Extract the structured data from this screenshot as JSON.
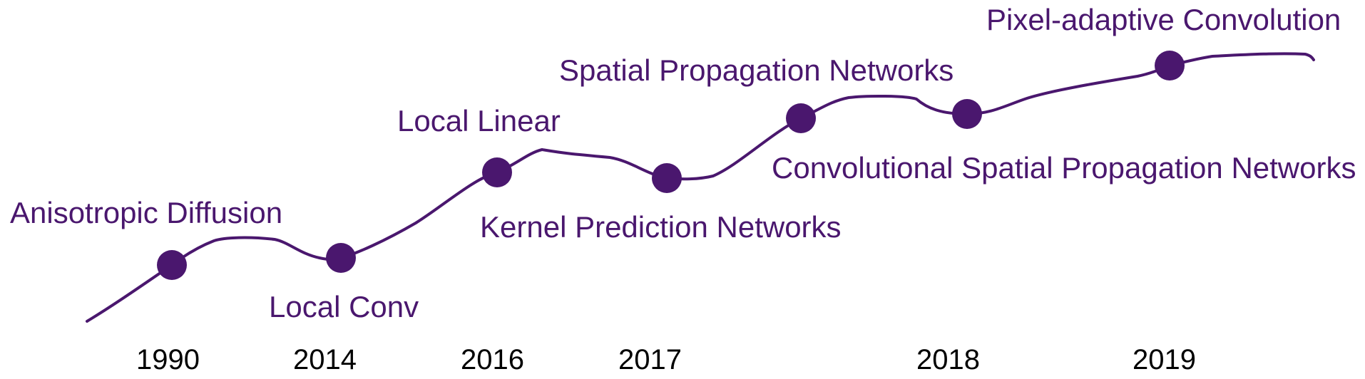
{
  "colors": {
    "curve": "#4a176e",
    "dot": "#4a176e",
    "milestone_text": "#4a176e",
    "year_text": "#000000",
    "background": "#ffffff"
  },
  "milestones": [
    {
      "label": "Anisotropic Diffusion"
    },
    {
      "label": "Local Conv"
    },
    {
      "label": "Local Linear"
    },
    {
      "label": "Kernel Prediction Networks"
    },
    {
      "label": "Spatial Propagation Networks"
    },
    {
      "label": "Convolutional Spatial Propagation Networks"
    },
    {
      "label": "Pixel-adaptive Convolution"
    }
  ],
  "years": [
    "1990",
    "2014",
    "2016",
    "2017",
    "2018",
    "2019"
  ]
}
